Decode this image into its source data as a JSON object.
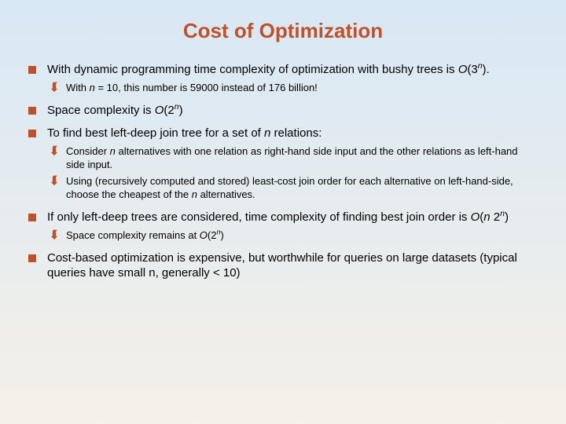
{
  "title": "Cost of Optimization",
  "bullets": {
    "b1": {
      "pre": "With dynamic programming time complexity of optimization with bushy trees is ",
      "bigO": "O",
      "base": "(3",
      "exp": "n",
      "post": ")."
    },
    "b1_1": {
      "pre": "With ",
      "n": "n",
      "post": " = 10, this number is 59000 instead of 176 billion!"
    },
    "b2": {
      "pre": "Space complexity is ",
      "bigO": "O",
      "base": "(2",
      "exp": "n",
      "post": ")"
    },
    "b3": {
      "pre": "To find best left-deep join tree for a set of ",
      "n": "n",
      "post": " relations:"
    },
    "b3_1": {
      "pre": "Consider ",
      "n": "n",
      "post": " alternatives with one relation as right-hand side input and the other relations as left-hand side input."
    },
    "b3_2": {
      "pre": "Using (recursively computed and stored) least-cost join order for each alternative on left-hand-side, choose the cheapest of the ",
      "n": "n",
      "post": " alternatives."
    },
    "b4": {
      "pre": "If only left-deep trees are considered, time complexity of finding best join order is ",
      "bigO": "O",
      "mid1": "(",
      "n1": "n",
      "mid2": " 2",
      "exp": "n",
      "post": ")"
    },
    "b4_1": {
      "pre": "Space complexity remains at ",
      "bigO": "O",
      "base": "(2",
      "exp": "n",
      "post": ")"
    },
    "b5": "Cost-based optimization is expensive, but worthwhile for queries on large datasets (typical queries have small n, generally < 10)"
  },
  "colors": {
    "accent": "#c05028",
    "text": "#000000",
    "bg_top": "#d8e8f5",
    "bg_bottom": "#f5f0e8"
  }
}
